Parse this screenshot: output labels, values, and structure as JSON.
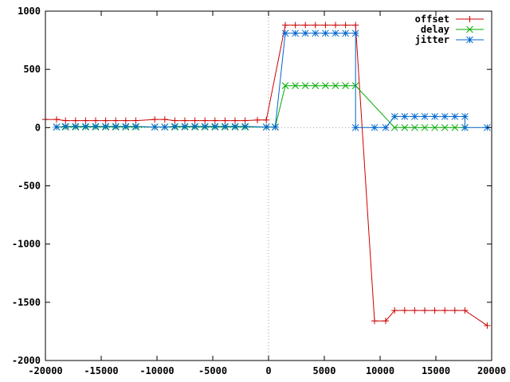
{
  "chart_data": {
    "type": "line",
    "title": "",
    "xlabel": "",
    "ylabel": "",
    "xlim": [
      -20000,
      20000
    ],
    "ylim": [
      -2000,
      1000
    ],
    "xticks": [
      -20000,
      -15000,
      -10000,
      -5000,
      0,
      5000,
      10000,
      15000,
      20000
    ],
    "yticks": [
      -2000,
      -1500,
      -1000,
      -500,
      0,
      500,
      1000
    ],
    "grid": false,
    "zero_lines": true,
    "legend_position": "top-right",
    "series": [
      {
        "name": "offset",
        "color": "#cc0000",
        "marker": "plus",
        "x": [
          -20000,
          -19000,
          -18200,
          -17300,
          -16400,
          -15500,
          -14600,
          -13700,
          -12800,
          -11900,
          -10200,
          -9300,
          -8400,
          -7500,
          -6600,
          -5700,
          -4800,
          -3900,
          -3000,
          -2100,
          -1000,
          -200,
          1500,
          2400,
          3300,
          4200,
          5100,
          6000,
          6900,
          7800,
          9500,
          10500,
          11300,
          12200,
          13100,
          14000,
          14900,
          15800,
          16700,
          17600,
          19600
        ],
        "y": [
          70,
          70,
          60,
          60,
          60,
          60,
          60,
          60,
          60,
          60,
          70,
          70,
          60,
          60,
          60,
          60,
          60,
          60,
          60,
          60,
          65,
          65,
          880,
          880,
          880,
          880,
          880,
          880,
          880,
          880,
          -1660,
          -1660,
          -1570,
          -1570,
          -1570,
          -1570,
          -1570,
          -1570,
          -1570,
          -1570,
          -1700
        ]
      },
      {
        "name": "delay",
        "color": "#00aa00",
        "marker": "x",
        "x": [
          -19000,
          -18200,
          -17300,
          -16400,
          -15500,
          -14600,
          -13700,
          -12800,
          -11900,
          -10200,
          -9300,
          -8400,
          -7500,
          -6600,
          -5700,
          -4800,
          -3900,
          -3000,
          -2100,
          -200,
          600,
          1500,
          2400,
          3300,
          4200,
          5100,
          6000,
          6900,
          7800,
          11300,
          12200,
          13100,
          14000,
          14900,
          15800,
          16700,
          17600
        ],
        "y": [
          5,
          5,
          5,
          5,
          5,
          5,
          5,
          5,
          5,
          5,
          5,
          5,
          5,
          5,
          5,
          5,
          5,
          5,
          5,
          5,
          5,
          360,
          360,
          360,
          360,
          360,
          360,
          360,
          360,
          0,
          0,
          0,
          0,
          0,
          0,
          0,
          0
        ]
      },
      {
        "name": "jitter",
        "color": "#0066cc",
        "marker": "star",
        "x": [
          -19000,
          -18200,
          -17300,
          -16400,
          -15500,
          -14600,
          -13700,
          -12800,
          -11900,
          -10200,
          -9300,
          -8400,
          -7500,
          -6600,
          -5700,
          -4800,
          -3900,
          -3000,
          -2100,
          -200,
          600,
          1500,
          2400,
          3300,
          4200,
          5100,
          6000,
          6900,
          7800,
          7800,
          9500,
          10500,
          11300,
          12200,
          13100,
          14000,
          14900,
          15800,
          16700,
          17600,
          17600,
          19600
        ],
        "y": [
          5,
          10,
          10,
          10,
          10,
          10,
          10,
          10,
          10,
          5,
          5,
          10,
          10,
          10,
          10,
          10,
          10,
          10,
          10,
          5,
          5,
          810,
          810,
          810,
          810,
          810,
          810,
          810,
          810,
          0,
          0,
          0,
          95,
          95,
          95,
          95,
          95,
          95,
          95,
          95,
          0,
          0
        ]
      }
    ]
  }
}
